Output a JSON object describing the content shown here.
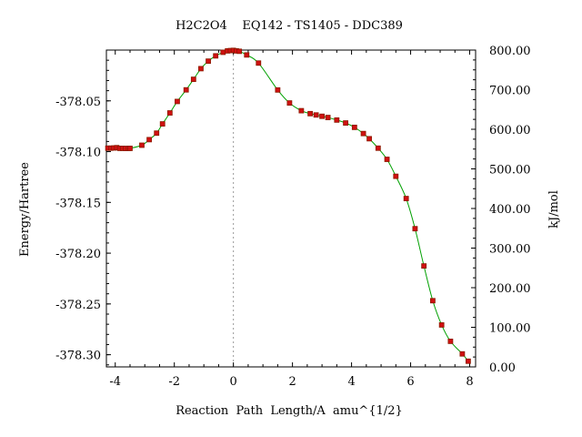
{
  "chart_data": {
    "type": "line",
    "title": "H2C2O4    EQ142 - TS1405 - DDC389",
    "xlabel": "Reaction  Path  Length/A  amu^{1/2}",
    "ylabel": "Energy/Hartree",
    "y2label": "kJ/mol",
    "xlim": [
      -4.3,
      8.2
    ],
    "ylim": [
      -378.312,
      -378.0
    ],
    "y2lim": [
      0.0,
      800.0
    ],
    "x_ticks": [
      -4,
      -2,
      0,
      2,
      4,
      6,
      8
    ],
    "x_tick_labels": [
      "-4",
      "-2",
      "0",
      "2",
      "4",
      "6",
      "8"
    ],
    "y_ticks": [
      -378.05,
      -378.1,
      -378.15,
      -378.2,
      -378.25,
      -378.3
    ],
    "y_tick_labels": [
      "-378.05",
      "-378.10",
      "-378.15",
      "-378.20",
      "-378.25",
      "-378.30"
    ],
    "y2_ticks": [
      0,
      100,
      200,
      300,
      400,
      500,
      600,
      700,
      800
    ],
    "y2_tick_labels": [
      "0.00",
      "100.00",
      "200.00",
      "300.00",
      "400.00",
      "500.00",
      "600.00",
      "700.00",
      "800.00"
    ],
    "ts_marker_x": 0,
    "grid": false,
    "colors": {
      "line": "#00a000",
      "point_fill": "#d01010",
      "point_edge": "#8a1a00",
      "ts_line": "#999999"
    },
    "series": [
      {
        "x": [
          -4.25,
          -4.15,
          -4.05,
          -3.95,
          -3.85,
          -3.75,
          -3.65,
          -3.55,
          -3.5,
          -3.1,
          -2.85,
          -2.6,
          -2.4,
          -2.15,
          -1.9,
          -1.6,
          -1.35,
          -1.1,
          -0.85,
          -0.6,
          -0.35,
          -0.2,
          -0.1,
          0.0,
          0.1,
          0.2,
          0.45,
          0.85,
          1.5,
          1.9,
          2.3,
          2.6,
          2.8,
          3.0,
          3.2,
          3.5,
          3.8,
          4.1,
          4.4,
          4.6,
          4.9,
          5.2,
          5.5,
          5.85,
          6.15,
          6.45,
          6.75,
          7.05,
          7.35,
          7.75,
          7.95
        ],
        "y": [
          -378.0966,
          -378.0966,
          -378.0964,
          -378.0961,
          -378.0968,
          -378.0968,
          -378.0969,
          -378.0968,
          -378.0968,
          -378.0937,
          -378.0882,
          -378.0818,
          -378.0727,
          -378.0619,
          -378.0506,
          -378.0392,
          -378.0288,
          -378.0183,
          -378.0109,
          -378.0057,
          -378.0022,
          -378.0008,
          -378.0005,
          -378.0003,
          -378.0008,
          -378.0012,
          -378.0048,
          -378.0128,
          -378.0393,
          -378.0521,
          -378.0597,
          -378.0626,
          -378.0639,
          -378.0652,
          -378.0664,
          -378.0689,
          -378.0718,
          -378.0761,
          -378.0822,
          -378.0873,
          -378.0966,
          -378.1076,
          -378.1243,
          -378.1462,
          -378.1759,
          -378.2126,
          -378.2468,
          -378.2707,
          -378.2868,
          -378.2992,
          -378.3064
        ]
      }
    ]
  }
}
